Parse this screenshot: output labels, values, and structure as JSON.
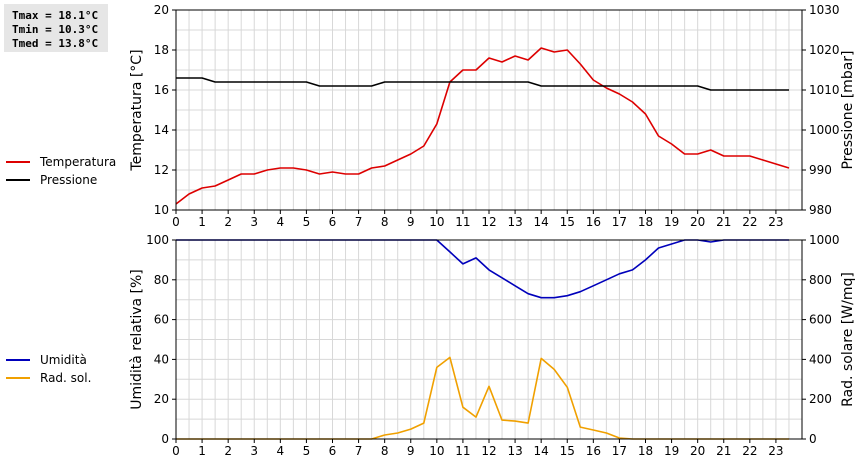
{
  "stats": {
    "tmax": "Tmax = 18.1°C",
    "tmin": "Tmin = 10.3°C",
    "tmed": "Tmed = 13.8°C"
  },
  "legend_top": [
    {
      "label": "Temperatura",
      "color": "#dd0000"
    },
    {
      "label": "Pressione",
      "color": "#000000"
    }
  ],
  "legend_bottom": [
    {
      "label": "Umidità",
      "color": "#0000bb"
    },
    {
      "label": "Rad. sol.",
      "color": "#f0a000"
    }
  ],
  "chart_data": [
    {
      "type": "line",
      "x": [
        0,
        0.5,
        1,
        1.5,
        2,
        2.5,
        3,
        3.5,
        4,
        4.5,
        5,
        5.5,
        6,
        6.5,
        7,
        7.5,
        8,
        8.5,
        9,
        9.5,
        10,
        10.5,
        11,
        11.5,
        12,
        12.5,
        13,
        13.5,
        14,
        14.5,
        15,
        15.5,
        16,
        16.5,
        17,
        17.5,
        18,
        18.5,
        19,
        19.5,
        20,
        20.5,
        21,
        21.5,
        22,
        22.5,
        23,
        23.5
      ],
      "xlim": [
        0,
        24
      ],
      "xticks": [
        "0",
        "1",
        "2",
        "3",
        "4",
        "5",
        "6",
        "7",
        "8",
        "9",
        "10",
        "11",
        "12",
        "13",
        "14",
        "15",
        "16",
        "17",
        "18",
        "19",
        "20",
        "21",
        "22",
        "23"
      ],
      "ylabel": "Temperatura [°C]",
      "ylim": [
        10,
        20
      ],
      "yticks": [
        "10",
        "12",
        "14",
        "16",
        "18",
        "20"
      ],
      "y2label": "Pressione [mbar]",
      "y2lim": [
        980,
        1030
      ],
      "y2ticks": [
        "980",
        "990",
        "1000",
        "1010",
        "1020",
        "1030"
      ],
      "grid": true,
      "series": [
        {
          "name": "Temperatura",
          "axis": "left",
          "color": "#dd0000",
          "values": [
            10.3,
            10.8,
            11.1,
            11.2,
            11.5,
            11.8,
            11.8,
            12.0,
            12.1,
            12.1,
            12.0,
            11.8,
            11.9,
            11.8,
            11.8,
            12.1,
            12.2,
            12.5,
            12.8,
            13.2,
            14.3,
            16.4,
            17.0,
            17.0,
            17.6,
            17.4,
            17.7,
            17.5,
            18.1,
            17.9,
            18.0,
            17.3,
            16.5,
            16.1,
            15.8,
            15.4,
            14.8,
            13.7,
            13.3,
            12.8,
            12.8,
            13.0,
            12.7,
            12.7,
            12.7,
            12.5,
            12.3,
            12.1
          ]
        },
        {
          "name": "Pressione",
          "axis": "right",
          "color": "#000000",
          "values": [
            1013,
            1013,
            1013,
            1012,
            1012,
            1012,
            1012,
            1012,
            1012,
            1012,
            1012,
            1011,
            1011,
            1011,
            1011,
            1011,
            1012,
            1012,
            1012,
            1012,
            1012,
            1012,
            1012,
            1012,
            1012,
            1012,
            1012,
            1012,
            1011,
            1011,
            1011,
            1011,
            1011,
            1011,
            1011,
            1011,
            1011,
            1011,
            1011,
            1011,
            1011,
            1010,
            1010,
            1010,
            1010,
            1010,
            1010,
            1010
          ]
        }
      ]
    },
    {
      "type": "line",
      "x": [
        0,
        0.5,
        1,
        1.5,
        2,
        2.5,
        3,
        3.5,
        4,
        4.5,
        5,
        5.5,
        6,
        6.5,
        7,
        7.5,
        8,
        8.5,
        9,
        9.5,
        10,
        10.5,
        11,
        11.5,
        12,
        12.5,
        13,
        13.5,
        14,
        14.5,
        15,
        15.5,
        16,
        16.5,
        17,
        17.5,
        18,
        18.5,
        19,
        19.5,
        20,
        20.5,
        21,
        21.5,
        22,
        22.5,
        23,
        23.5
      ],
      "xlim": [
        0,
        24
      ],
      "xticks": [
        "0",
        "1",
        "2",
        "3",
        "4",
        "5",
        "6",
        "7",
        "8",
        "9",
        "10",
        "11",
        "12",
        "13",
        "14",
        "15",
        "16",
        "17",
        "18",
        "19",
        "20",
        "21",
        "22",
        "23"
      ],
      "ylabel": "Umidità relativa [%]",
      "ylim": [
        0,
        100
      ],
      "yticks": [
        "0",
        "20",
        "40",
        "60",
        "80",
        "100"
      ],
      "y2label": "Rad. solare [W/mq]",
      "y2lim": [
        0,
        1000
      ],
      "y2ticks": [
        "0",
        "200",
        "400",
        "600",
        "800",
        "1000"
      ],
      "grid": true,
      "series": [
        {
          "name": "Umidità",
          "axis": "left",
          "color": "#0000bb",
          "values": [
            100,
            100,
            100,
            100,
            100,
            100,
            100,
            100,
            100,
            100,
            100,
            100,
            100,
            100,
            100,
            100,
            100,
            100,
            100,
            100,
            100,
            94,
            88,
            91,
            85,
            81,
            77,
            73,
            71,
            71,
            72,
            74,
            77,
            80,
            83,
            85,
            90,
            96,
            98,
            100,
            100,
            99,
            100,
            100,
            100,
            100,
            100,
            100
          ]
        },
        {
          "name": "Rad. sol.",
          "axis": "right",
          "color": "#f0a000",
          "values": [
            0,
            0,
            0,
            0,
            0,
            0,
            0,
            0,
            0,
            0,
            0,
            0,
            0,
            0,
            0,
            0,
            20,
            30,
            50,
            80,
            360,
            410,
            160,
            110,
            265,
            95,
            90,
            80,
            405,
            350,
            260,
            60,
            45,
            30,
            5,
            0,
            0,
            0,
            0,
            0,
            0,
            0,
            0,
            0,
            0,
            0,
            0,
            0
          ]
        }
      ]
    }
  ]
}
